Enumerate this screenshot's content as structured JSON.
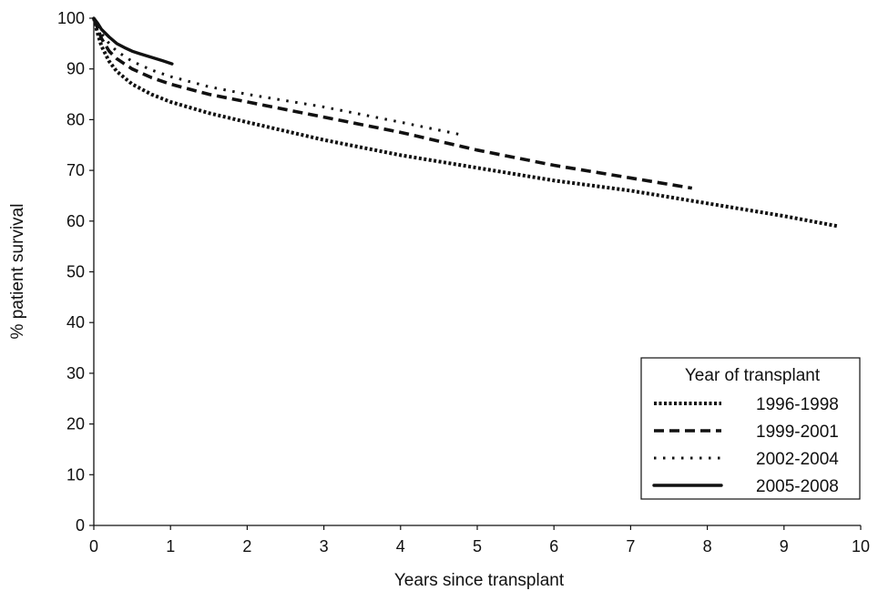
{
  "chart_data": {
    "type": "line",
    "title": "",
    "xlabel": "Years since transplant",
    "ylabel": "% patient survival",
    "xlim": [
      0,
      10
    ],
    "ylim": [
      0,
      100
    ],
    "xticks": [
      0,
      1,
      2,
      3,
      4,
      5,
      6,
      7,
      8,
      9,
      10
    ],
    "yticks": [
      0,
      10,
      20,
      30,
      40,
      50,
      60,
      70,
      80,
      90,
      100
    ],
    "grid": false,
    "legend": {
      "title": "Year of transplant",
      "placement": "bottom-right"
    },
    "series": [
      {
        "name": "1996-1998",
        "style": "dense-dotted",
        "color": "#111111",
        "x": [
          0,
          0.05,
          0.1,
          0.2,
          0.3,
          0.5,
          0.75,
          1,
          1.5,
          2,
          3,
          4,
          5,
          6,
          7,
          8,
          9,
          9.7
        ],
        "y": [
          100,
          97,
          94.5,
          91.5,
          89.5,
          87,
          85,
          83.5,
          81.3,
          79.5,
          76,
          73,
          70.5,
          68,
          66,
          63.5,
          61,
          59
        ]
      },
      {
        "name": "1999-2001",
        "style": "dashed",
        "color": "#111111",
        "x": [
          0,
          0.05,
          0.1,
          0.2,
          0.3,
          0.5,
          0.75,
          1,
          1.5,
          2,
          3,
          4,
          5,
          6,
          7,
          7.8
        ],
        "y": [
          100,
          98,
          96,
          93.5,
          92,
          90,
          88.3,
          87,
          85,
          83.5,
          80.5,
          77.5,
          74,
          71,
          68.5,
          66.5
        ]
      },
      {
        "name": "2002-2004",
        "style": "sparse-dotted",
        "color": "#111111",
        "x": [
          0,
          0.05,
          0.1,
          0.2,
          0.3,
          0.5,
          0.75,
          1,
          1.5,
          2,
          3,
          4,
          4.8
        ],
        "y": [
          100,
          98.5,
          97,
          95,
          93.5,
          91.5,
          89.8,
          88.5,
          86.5,
          85,
          82.5,
          79.5,
          77
        ]
      },
      {
        "name": "2005-2008",
        "style": "solid",
        "color": "#111111",
        "x": [
          0,
          0.05,
          0.1,
          0.2,
          0.3,
          0.4,
          0.5,
          0.6,
          0.75,
          0.9,
          1.02
        ],
        "y": [
          100,
          99,
          97.8,
          96.3,
          95,
          94.2,
          93.5,
          93,
          92.3,
          91.6,
          91
        ]
      }
    ]
  }
}
